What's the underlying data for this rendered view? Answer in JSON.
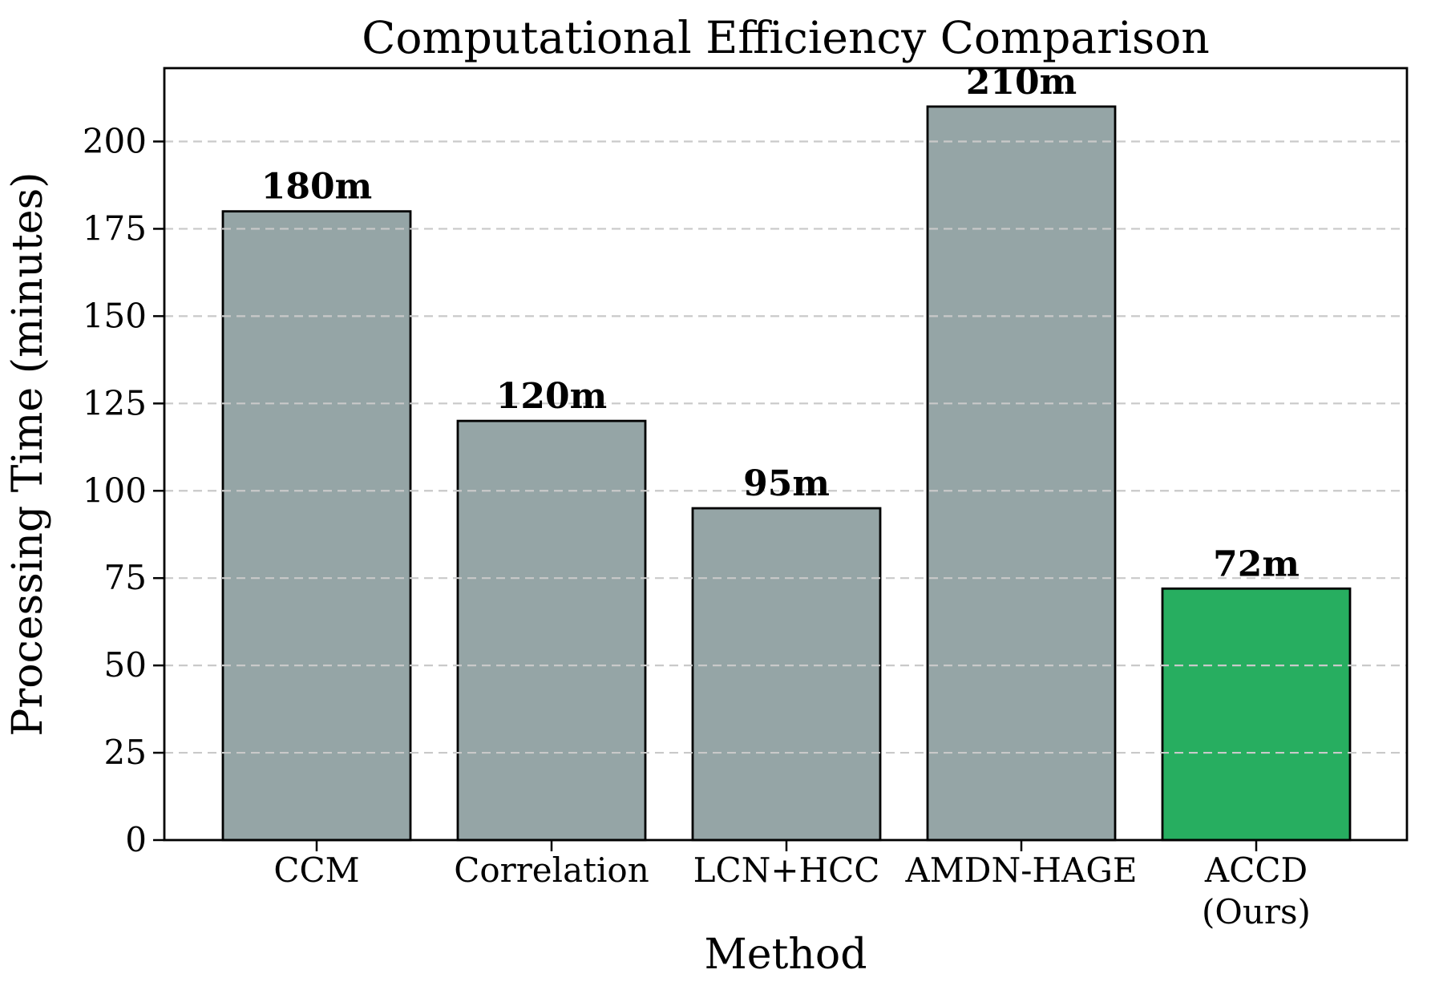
{
  "figure": {
    "title": "Computational Efficiency Comparison",
    "background_color": "#ffffff"
  },
  "chart_data": {
    "type": "bar",
    "title": "Computational Efficiency Comparison",
    "xlabel": "Method",
    "ylabel": "Processing Time (minutes)",
    "categories": [
      "CCM",
      "Correlation",
      "LCN+HCC",
      "AMDN-HAGE",
      "ACCD (Ours)"
    ],
    "category_lines": [
      [
        "CCM"
      ],
      [
        "Correlation"
      ],
      [
        "LCN+HCC"
      ],
      [
        "AMDN-HAGE"
      ],
      [
        "ACCD",
        "(Ours)"
      ]
    ],
    "values": [
      180,
      120,
      95,
      210,
      72
    ],
    "value_labels": [
      "180m",
      "120m",
      "95m",
      "210m",
      "72m"
    ],
    "bar_colors": [
      "#95a5a6",
      "#95a5a6",
      "#95a5a6",
      "#95a5a6",
      "#27ae60"
    ],
    "bar_edge_color": "#000000",
    "highlight_color": "#27ae60",
    "default_bar_color": "#95a5a6",
    "yticks": [
      0,
      25,
      50,
      75,
      100,
      125,
      150,
      175,
      200
    ],
    "ylim": [
      0,
      221
    ],
    "grid": {
      "visible": true,
      "axis": "y",
      "style": "dashed",
      "color": "#c9c9c9",
      "over_bars": true
    },
    "legend": "none",
    "frame_color": "#000000"
  }
}
